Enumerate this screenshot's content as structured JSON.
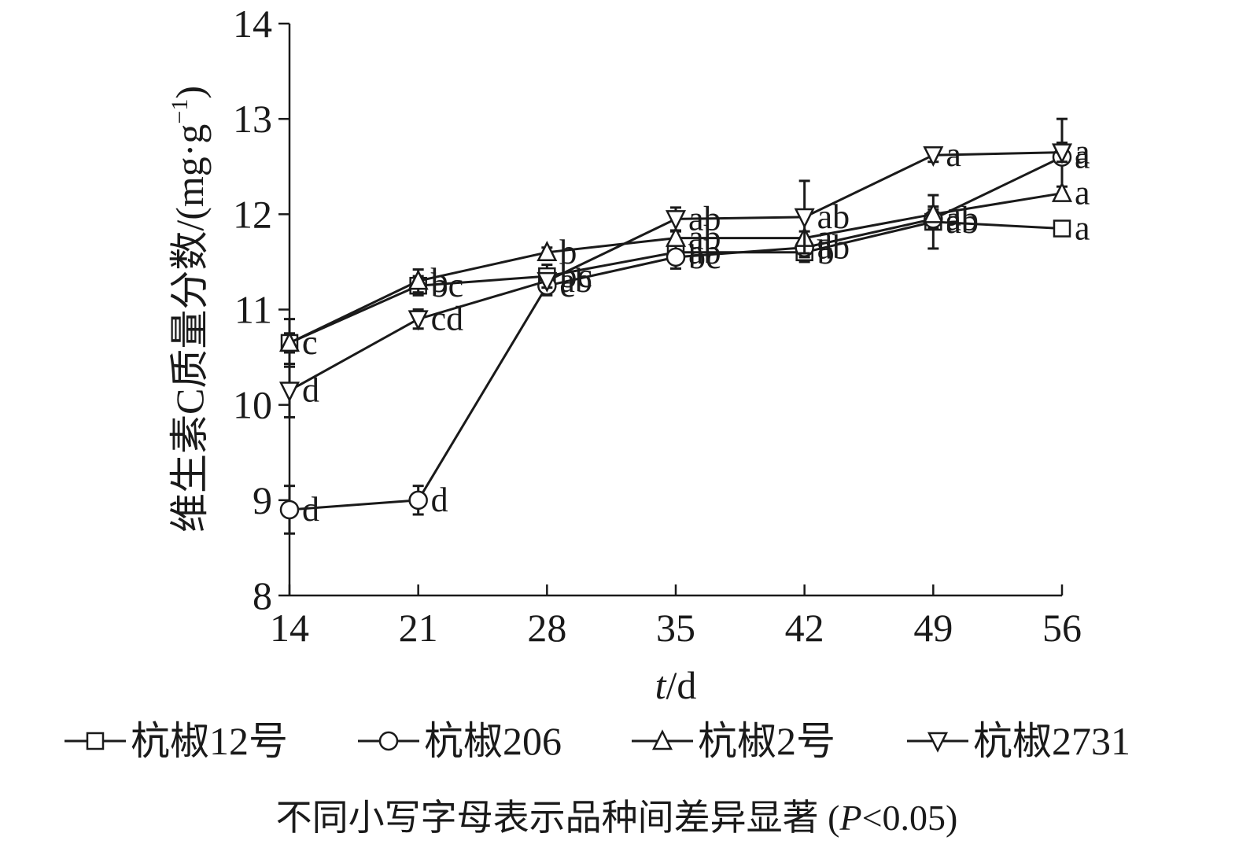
{
  "chart_data": {
    "type": "line",
    "xlabel_italic": "t",
    "xlabel_unit": "/d",
    "ylabel": "维生素C质量分数/(mg·g",
    "ylabel_sup": "−1",
    "ylabel_close": ")",
    "xlim": [
      14,
      56
    ],
    "ylim": [
      8,
      14
    ],
    "x_ticks": [
      "14",
      "21",
      "28",
      "35",
      "42",
      "49",
      "56"
    ],
    "y_ticks": [
      "8",
      "9",
      "10",
      "11",
      "12",
      "13",
      "14"
    ],
    "x": [
      14,
      21,
      28,
      35,
      42,
      49,
      56
    ],
    "series": [
      {
        "name": "杭椒12号",
        "marker": "square",
        "values": [
          10.65,
          11.25,
          11.35,
          11.6,
          11.6,
          11.92,
          11.85
        ],
        "errors": [
          0.25,
          0.1,
          0.12,
          0.07,
          0.1,
          0.28,
          0.05
        ],
        "letters": [
          "c",
          "bc",
          "bc",
          "ab",
          "b",
          "ab",
          "a"
        ]
      },
      {
        "name": "杭椒206",
        "marker": "circle",
        "values": [
          8.9,
          9.0,
          11.25,
          11.55,
          11.65,
          11.95,
          12.6
        ],
        "errors": [
          0.25,
          0.15,
          0.1,
          0.12,
          0.1,
          0.1,
          0.4
        ],
        "letters": [
          "d",
          "d",
          "c",
          "bc",
          "ab",
          "ab",
          "a"
        ]
      },
      {
        "name": "杭椒2号",
        "marker": "triangle-up",
        "values": [
          10.65,
          11.3,
          11.6,
          11.75,
          11.75,
          12.0,
          12.22
        ],
        "errors": [
          0.1,
          0.12,
          0.05,
          0.07,
          0.07,
          0.08,
          0.07
        ],
        "letters": [
          "c",
          "b",
          "b",
          "ab",
          "a",
          "a",
          "a"
        ]
      },
      {
        "name": "杭椒2731",
        "marker": "triangle-down",
        "values": [
          10.15,
          10.9,
          11.3,
          11.95,
          11.97,
          12.62,
          12.65
        ],
        "errors": [
          0.28,
          0.1,
          0.07,
          0.12,
          0.38,
          0.07,
          0.1
        ],
        "letters": [
          "d",
          "cd",
          "ab",
          "ab",
          "ab",
          "a",
          "a"
        ]
      }
    ],
    "legend_position": "bottom",
    "grid": false,
    "footnote": "不同小写字母表示品种间差异显著 (",
    "footnote_p": "P",
    "footnote_tail": "<0.05)"
  }
}
